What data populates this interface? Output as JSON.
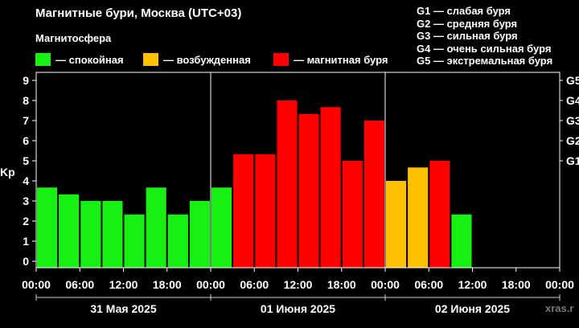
{
  "header": {
    "title": "Магнитные бури, Москва (UTC+03)",
    "subtitle": "Магнитосфера"
  },
  "legend": [
    {
      "label": "— спокойная",
      "color": "#17f013"
    },
    {
      "label": "— возбужденная",
      "color": "#ffc000"
    },
    {
      "label": "— магнитная буря",
      "color": "#ff0000"
    }
  ],
  "storm_scale": [
    "G1 — слабая буря",
    "G2 — средняя буря",
    "G3 — сильная буря",
    "G4 — очень сильная буря",
    "G5 — экстремальная буря"
  ],
  "watermark": "xras.r",
  "chart_data": {
    "type": "bar",
    "ylabel": "Kp",
    "ylim": [
      0,
      9
    ],
    "yticks": [
      0,
      1,
      2,
      3,
      4,
      5,
      6,
      7,
      8,
      9
    ],
    "right_ticks": [
      {
        "value": 5,
        "label": "G1"
      },
      {
        "value": 6,
        "label": "G2"
      },
      {
        "value": 7,
        "label": "G3"
      },
      {
        "value": 8,
        "label": "G4"
      },
      {
        "value": 9,
        "label": "G5"
      }
    ],
    "xtick_labels": [
      "00:00",
      "06:00",
      "12:00",
      "18:00",
      "00:00",
      "06:00",
      "12:00",
      "18:00",
      "00:00",
      "06:00",
      "12:00",
      "18:00",
      "00:00"
    ],
    "days": [
      "31 Мая 2025",
      "01 Июня 2025",
      "02 Июня 2025"
    ],
    "interval_hours": 3,
    "slots_total": 24,
    "grid": false,
    "values": [
      3.67,
      3.33,
      3.0,
      3.0,
      2.33,
      3.67,
      2.33,
      3.0,
      3.67,
      5.33,
      5.33,
      8.0,
      7.33,
      7.67,
      5.0,
      7.0,
      4.0,
      4.67,
      5.0,
      2.33
    ],
    "bar_colors": [
      "#17f013",
      "#17f013",
      "#17f013",
      "#17f013",
      "#17f013",
      "#17f013",
      "#17f013",
      "#17f013",
      "#17f013",
      "#ff0000",
      "#ff0000",
      "#ff0000",
      "#ff0000",
      "#ff0000",
      "#ff0000",
      "#ff0000",
      "#ffc000",
      "#ffc000",
      "#ff0000",
      "#17f013"
    ]
  }
}
